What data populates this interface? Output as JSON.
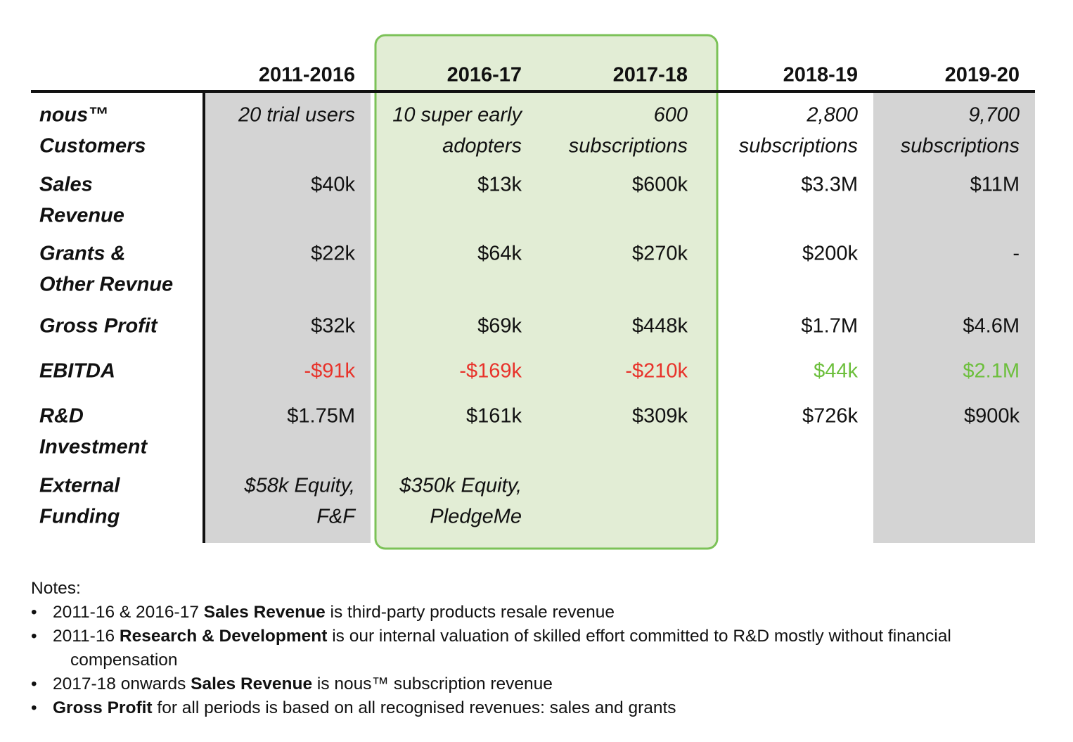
{
  "table": {
    "columns": [
      "2011-2016",
      "2016-17",
      "2017-18",
      "2018-19",
      "2019-20"
    ],
    "rows": [
      {
        "label": [
          "nous™",
          "Customers"
        ],
        "italic": true,
        "cells": [
          [
            "20 trial users"
          ],
          [
            "10 super early",
            "adopters"
          ],
          [
            "600",
            "subscriptions"
          ],
          [
            "2,800",
            "subscriptions"
          ],
          [
            "9,700",
            "subscriptions"
          ]
        ]
      },
      {
        "label": [
          "Sales",
          "Revenue"
        ],
        "cells": [
          [
            "$40k"
          ],
          [
            "$13k"
          ],
          [
            "$600k"
          ],
          [
            "$3.3M"
          ],
          [
            "$11M"
          ]
        ]
      },
      {
        "label": [
          "Grants &",
          "Other Revnue"
        ],
        "cells": [
          [
            "$22k"
          ],
          [
            "$64k"
          ],
          [
            "$270k"
          ],
          [
            "$200k"
          ],
          [
            "-"
          ]
        ]
      },
      {
        "label": [
          "Gross Profit"
        ],
        "cells": [
          [
            "$32k"
          ],
          [
            "$69k"
          ],
          [
            "$448k"
          ],
          [
            "$1.7M"
          ],
          [
            "$4.6M"
          ]
        ]
      },
      {
        "label": [
          "EBITDA"
        ],
        "colors": [
          "#e8322a",
          "#e8322a",
          "#e8322a",
          "#6cbf3c",
          "#6cbf3c"
        ],
        "cells": [
          [
            "-$91k"
          ],
          [
            "-$169k"
          ],
          [
            "-$210k"
          ],
          [
            "$44k"
          ],
          [
            "$2.1M"
          ]
        ]
      },
      {
        "label": [
          "R&D",
          "Investment"
        ],
        "cells": [
          [
            "$1.75M"
          ],
          [
            "$161k"
          ],
          [
            "$309k"
          ],
          [
            "$726k"
          ],
          [
            "$900k"
          ]
        ]
      },
      {
        "label": [
          "External",
          "Funding"
        ],
        "italic": true,
        "cells": [
          [
            "$58k Equity,",
            "F&F"
          ],
          [
            "$350k Equity,",
            "PledgeMe"
          ],
          [],
          [],
          []
        ]
      }
    ]
  },
  "notes": {
    "title": "Notes:",
    "items": [
      [
        {
          "text": "2011-16 & 2016-17 "
        },
        {
          "text": "Sales Revenue",
          "bold": true
        },
        {
          "text": " is third-party products resale revenue"
        }
      ],
      [
        {
          "text": "2011-16 "
        },
        {
          "text": "Research & Development",
          "bold": true
        },
        {
          "text": " is our internal valuation of skilled effort committed to R&D mostly without financial compensation"
        }
      ],
      [
        {
          "text": "2017-18 onwards "
        },
        {
          "text": "Sales Revenue",
          "bold": true
        },
        {
          "text": " is nous™ subscription revenue"
        }
      ],
      [
        {
          "text": "Gross Profit",
          "bold": true
        },
        {
          "text": " for all periods is based on all recognised revenues: sales and grants"
        }
      ]
    ]
  }
}
